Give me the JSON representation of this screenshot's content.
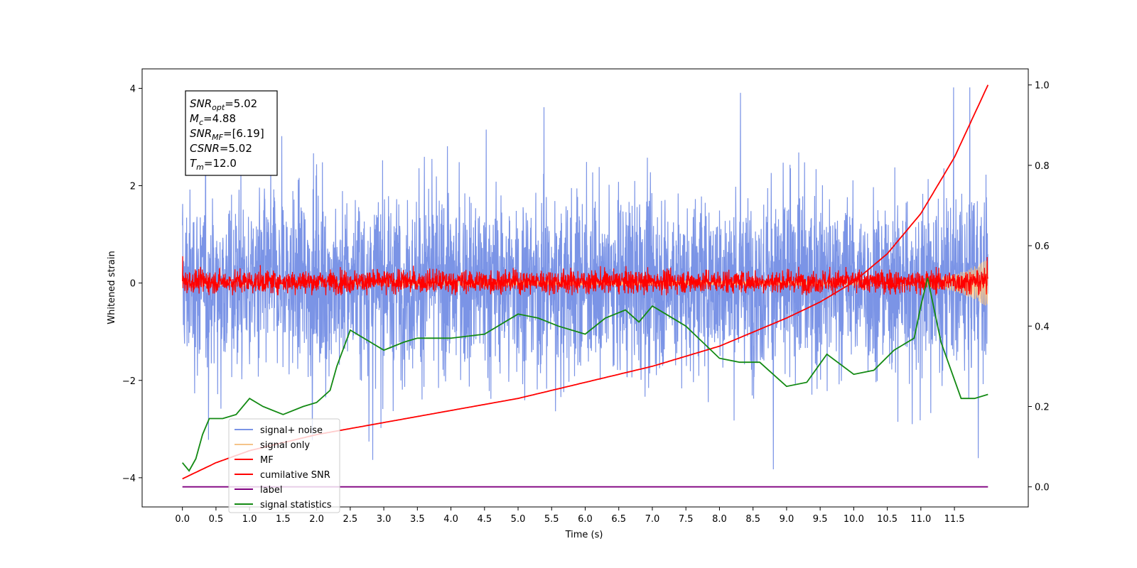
{
  "chart_data": {
    "type": "line",
    "xlabel": "Time (s)",
    "ylabel": "Whitened strain",
    "xlim": [
      -0.6,
      12.6
    ],
    "ylim": [
      -4.6,
      4.4
    ],
    "y2lim": [
      -0.05,
      1.04
    ],
    "x_ticks": [
      "0.0",
      "0.5",
      "1.0",
      "1.5",
      "2.0",
      "2.5",
      "3.0",
      "3.5",
      "4.0",
      "4.5",
      "5.0",
      "5.5",
      "6.0",
      "6.5",
      "7.0",
      "7.5",
      "8.0",
      "8.5",
      "9.0",
      "9.5",
      "10.0",
      "10.5",
      "11.0",
      "11.5"
    ],
    "y_ticks": [
      "4",
      "2",
      "0",
      "−2",
      "−4"
    ],
    "y2_ticks": [
      "1.0",
      "0.8",
      "0.6",
      "0.4",
      "0.2",
      "0.0"
    ],
    "annotation": {
      "lines": [
        {
          "label": "SNR",
          "sub": "opt",
          "value": "=5.02"
        },
        {
          "label": "M",
          "sub": "c",
          "value": "=4.88"
        },
        {
          "label": "SNR",
          "sub": "MF",
          "value": "=[6.19]"
        },
        {
          "label": "CSNR",
          "sub": "",
          "value": "=5.02"
        },
        {
          "label": "T",
          "sub": "m",
          "value": "=12.0"
        }
      ]
    },
    "legend_position": "lower-left",
    "series": [
      {
        "name": "signal+ noise",
        "color": "#7b94e6",
        "axis": "left",
        "style": "noise band roughly −2.5 to 2.5, peaks ±4",
        "x_range": [
          0.0,
          12.0
        ]
      },
      {
        "name": "signal only",
        "color": "#f5c48a",
        "axis": "left",
        "style": "chirp amplitude growing near 11.5–12 s",
        "x_range": [
          0.0,
          12.0
        ]
      },
      {
        "name": "MF",
        "color": "#ff0000",
        "axis": "left",
        "style": "noise band roughly −0.25 to 0.4",
        "x_range": [
          0.0,
          12.0
        ]
      },
      {
        "name": "cumilative SNR",
        "color": "#ff0000",
        "axis": "right",
        "x": [
          0.0,
          0.5,
          1.0,
          2.0,
          3.0,
          4.0,
          5.0,
          6.0,
          7.0,
          8.0,
          9.0,
          9.5,
          10.0,
          10.5,
          11.0,
          11.5,
          12.0
        ],
        "values": [
          0.02,
          0.06,
          0.09,
          0.13,
          0.16,
          0.19,
          0.22,
          0.26,
          0.3,
          0.35,
          0.42,
          0.46,
          0.51,
          0.58,
          0.68,
          0.82,
          1.0
        ]
      },
      {
        "name": "label",
        "color": "#800080",
        "axis": "right",
        "x": [
          0.0,
          12.0
        ],
        "values": [
          0.0,
          0.0
        ]
      },
      {
        "name": "signal statistics",
        "color": "#138a13",
        "axis": "right",
        "x": [
          0.0,
          0.1,
          0.2,
          0.3,
          0.4,
          0.6,
          0.8,
          1.0,
          1.2,
          1.5,
          1.8,
          2.0,
          2.2,
          2.3,
          2.5,
          2.8,
          3.0,
          3.3,
          3.5,
          4.0,
          4.5,
          5.0,
          5.3,
          5.6,
          6.0,
          6.3,
          6.6,
          6.8,
          7.0,
          7.2,
          7.5,
          8.0,
          8.3,
          8.6,
          9.0,
          9.3,
          9.6,
          10.0,
          10.3,
          10.6,
          10.9,
          11.0,
          11.1,
          11.3,
          11.6,
          11.8,
          12.0
        ],
        "values": [
          0.06,
          0.04,
          0.07,
          0.13,
          0.17,
          0.17,
          0.18,
          0.22,
          0.2,
          0.18,
          0.2,
          0.21,
          0.24,
          0.3,
          0.39,
          0.36,
          0.34,
          0.36,
          0.37,
          0.37,
          0.38,
          0.43,
          0.42,
          0.4,
          0.38,
          0.42,
          0.44,
          0.41,
          0.45,
          0.43,
          0.4,
          0.32,
          0.31,
          0.31,
          0.25,
          0.26,
          0.33,
          0.28,
          0.29,
          0.34,
          0.37,
          0.45,
          0.52,
          0.36,
          0.22,
          0.22,
          0.23
        ]
      }
    ]
  }
}
